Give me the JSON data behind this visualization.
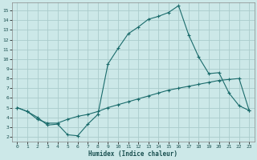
{
  "xlabel": "Humidex (Indice chaleur)",
  "bg_color": "#cce8e8",
  "grid_color": "#aacccc",
  "line_color": "#1a6b6b",
  "xlim": [
    -0.5,
    23.5
  ],
  "ylim": [
    1.5,
    15.8
  ],
  "xticks": [
    0,
    1,
    2,
    3,
    4,
    5,
    6,
    7,
    8,
    9,
    10,
    11,
    12,
    13,
    14,
    15,
    16,
    17,
    18,
    19,
    20,
    21,
    22,
    23
  ],
  "yticks": [
    2,
    3,
    4,
    5,
    6,
    7,
    8,
    9,
    10,
    11,
    12,
    13,
    14,
    15
  ],
  "line1_x": [
    0,
    1,
    2,
    3,
    4,
    5,
    6,
    7,
    8,
    9,
    10,
    11,
    12,
    13,
    14,
    15,
    16,
    17,
    18,
    19,
    20,
    21,
    22,
    23
  ],
  "line1_y": [
    5.0,
    4.6,
    4.0,
    3.2,
    3.3,
    2.2,
    2.1,
    3.3,
    4.3,
    9.5,
    11.1,
    12.6,
    13.3,
    14.1,
    14.4,
    14.8,
    15.5,
    12.5,
    10.2,
    8.5,
    8.6,
    6.5,
    5.2,
    4.7
  ],
  "line2_x": [
    0,
    1,
    2,
    3,
    4,
    5,
    6,
    7,
    8,
    9,
    10,
    11,
    12,
    13,
    14,
    15,
    16,
    17,
    18,
    19,
    20,
    21,
    22,
    23
  ],
  "line2_y": [
    5.0,
    4.6,
    3.8,
    3.4,
    3.4,
    3.8,
    4.1,
    4.3,
    4.6,
    5.0,
    5.3,
    5.6,
    5.9,
    6.2,
    6.5,
    6.8,
    7.0,
    7.2,
    7.4,
    7.6,
    7.8,
    7.9,
    8.0,
    4.7
  ]
}
